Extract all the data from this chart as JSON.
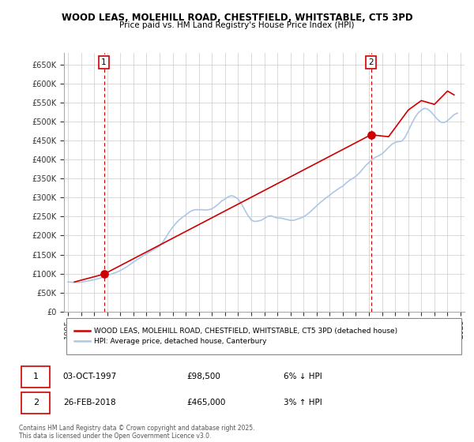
{
  "title": "WOOD LEAS, MOLEHILL ROAD, CHESTFIELD, WHITSTABLE, CT5 3PD",
  "subtitle": "Price paid vs. HM Land Registry's House Price Index (HPI)",
  "ytick_values": [
    0,
    50000,
    100000,
    150000,
    200000,
    250000,
    300000,
    350000,
    400000,
    450000,
    500000,
    550000,
    600000,
    650000
  ],
  "ylim": [
    0,
    680000
  ],
  "xlim_years": [
    1995,
    2025
  ],
  "xtick_years": [
    1995,
    1996,
    1997,
    1998,
    1999,
    2000,
    2001,
    2002,
    2003,
    2004,
    2005,
    2006,
    2007,
    2008,
    2009,
    2010,
    2011,
    2012,
    2013,
    2014,
    2015,
    2016,
    2017,
    2018,
    2019,
    2020,
    2021,
    2022,
    2023,
    2024,
    2025
  ],
  "hpi_color": "#aec6e8",
  "price_color": "#cc0000",
  "annotation_box_color": "#cc0000",
  "grid_color": "#cccccc",
  "background_color": "#ffffff",
  "legend_label_price": "WOOD LEAS, MOLEHILL ROAD, CHESTFIELD, WHITSTABLE, CT5 3PD (detached house)",
  "legend_label_hpi": "HPI: Average price, detached house, Canterbury",
  "sale1_date": "03-OCT-1997",
  "sale1_price": "£98,500",
  "sale1_pct": "6% ↓ HPI",
  "sale1_year": 1997.75,
  "sale1_value": 98500,
  "sale2_date": "26-FEB-2018",
  "sale2_price": "£465,000",
  "sale2_pct": "3% ↑ HPI",
  "sale2_year": 2018.15,
  "sale2_value": 465000,
  "copyright_text": "Contains HM Land Registry data © Crown copyright and database right 2025.\nThis data is licensed under the Open Government Licence v3.0.",
  "hpi_data_years": [
    1995.0,
    1995.25,
    1995.5,
    1995.75,
    1996.0,
    1996.25,
    1996.5,
    1996.75,
    1997.0,
    1997.25,
    1997.5,
    1997.75,
    1998.0,
    1998.25,
    1998.5,
    1998.75,
    1999.0,
    1999.25,
    1999.5,
    1999.75,
    2000.0,
    2000.25,
    2000.5,
    2000.75,
    2001.0,
    2001.25,
    2001.5,
    2001.75,
    2002.0,
    2002.25,
    2002.5,
    2002.75,
    2003.0,
    2003.25,
    2003.5,
    2003.75,
    2004.0,
    2004.25,
    2004.5,
    2004.75,
    2005.0,
    2005.25,
    2005.5,
    2005.75,
    2006.0,
    2006.25,
    2006.5,
    2006.75,
    2007.0,
    2007.25,
    2007.5,
    2007.75,
    2008.0,
    2008.25,
    2008.5,
    2008.75,
    2009.0,
    2009.25,
    2009.5,
    2009.75,
    2010.0,
    2010.25,
    2010.5,
    2010.75,
    2011.0,
    2011.25,
    2011.5,
    2011.75,
    2012.0,
    2012.25,
    2012.5,
    2012.75,
    2013.0,
    2013.25,
    2013.5,
    2013.75,
    2014.0,
    2014.25,
    2014.5,
    2014.75,
    2015.0,
    2015.25,
    2015.5,
    2015.75,
    2016.0,
    2016.25,
    2016.5,
    2016.75,
    2017.0,
    2017.25,
    2017.5,
    2017.75,
    2018.0,
    2018.25,
    2018.5,
    2018.75,
    2019.0,
    2019.25,
    2019.5,
    2019.75,
    2020.0,
    2020.25,
    2020.5,
    2020.75,
    2021.0,
    2021.25,
    2021.5,
    2021.75,
    2022.0,
    2022.25,
    2022.5,
    2022.75,
    2023.0,
    2023.25,
    2023.5,
    2023.75,
    2024.0,
    2024.25,
    2024.5,
    2024.75
  ],
  "hpi_data_values": [
    78000,
    77500,
    76800,
    77000,
    77500,
    79000,
    80500,
    82000,
    84000,
    86000,
    88500,
    91500,
    95000,
    98000,
    101000,
    104000,
    108000,
    113000,
    118000,
    124000,
    130000,
    136000,
    141000,
    147000,
    152000,
    157000,
    162000,
    167000,
    172000,
    183000,
    196000,
    210000,
    222000,
    232000,
    241000,
    248000,
    254000,
    261000,
    266000,
    268000,
    268000,
    268000,
    267000,
    268000,
    270000,
    276000,
    283000,
    291000,
    296000,
    302000,
    305000,
    302000,
    296000,
    284000,
    268000,
    253000,
    241000,
    237000,
    238000,
    240000,
    245000,
    250000,
    252000,
    249000,
    246000,
    246000,
    244000,
    242000,
    240000,
    240000,
    243000,
    246000,
    249000,
    255000,
    262000,
    270000,
    278000,
    286000,
    293000,
    300000,
    306000,
    313000,
    319000,
    325000,
    330000,
    338000,
    345000,
    350000,
    356000,
    364000,
    374000,
    384000,
    392000,
    400000,
    406000,
    410000,
    415000,
    423000,
    432000,
    440000,
    445000,
    447000,
    448000,
    458000,
    475000,
    493000,
    510000,
    522000,
    530000,
    535000,
    532000,
    525000,
    515000,
    505000,
    498000,
    497000,
    502000,
    510000,
    518000,
    522000
  ],
  "price_data_years": [
    1995.5,
    1997.75,
    2018.15,
    2019.5,
    2021.0,
    2022.0,
    2023.0,
    2024.0,
    2024.5
  ],
  "price_data_values": [
    78000,
    98500,
    465000,
    460000,
    530000,
    555000,
    545000,
    580000,
    570000
  ]
}
